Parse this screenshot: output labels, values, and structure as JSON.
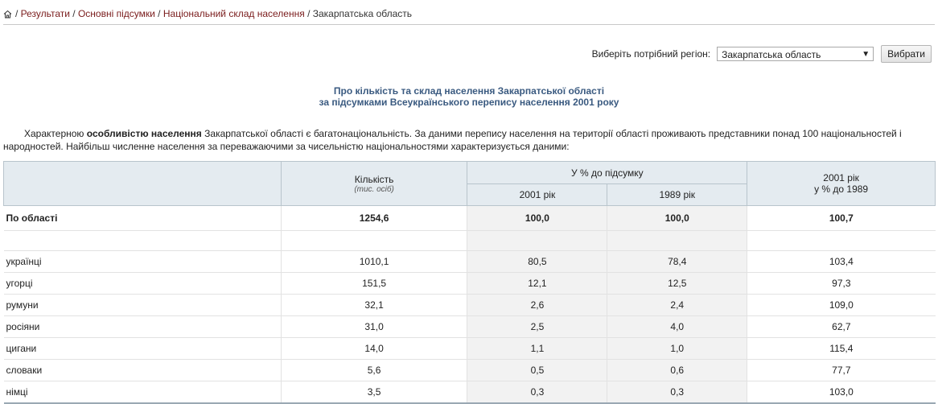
{
  "breadcrumb": {
    "home_icon": "home-icon",
    "items": [
      "Результати",
      "Основні підсумки",
      "Національний склад населення"
    ],
    "current": "Закарпатська область"
  },
  "region": {
    "label": "Виберіть потрібний регіон:",
    "selected": "Закарпатська область",
    "button": "Вибрати"
  },
  "title": {
    "line1": "Про кількість та склад населення Закарпатської області",
    "line2": "за підсумками Всеукраїнського перепису населення 2001 року"
  },
  "intro": {
    "lead": "Характерною ",
    "bold": "особливістю населення",
    "rest": " Закарпатської області є багатонаціональність. За даними перепису населення на території області  проживають представники понад 100 національностей і народностей. Найбільш численне населення за переважаючими  за чисельністю національностями характеризується даними:"
  },
  "table": {
    "headers": {
      "count": "Кількість",
      "count_unit": "(тис. осіб)",
      "percent_group": "У % до підсумку",
      "y2001": "2001 рік",
      "y1989": "1989 рік",
      "change_line1": "2001 рік",
      "change_line2": "у % до 1989"
    },
    "total": {
      "name": "По області",
      "count": "1254,6",
      "p2001": "100,0",
      "p1989": "100,0",
      "change": "100,7"
    },
    "rows": [
      {
        "name": "українці",
        "count": "1010,1",
        "p2001": "80,5",
        "p1989": "78,4",
        "change": "103,4"
      },
      {
        "name": "угорці",
        "count": "151,5",
        "p2001": "12,1",
        "p1989": "12,5",
        "change": "97,3"
      },
      {
        "name": "румуни",
        "count": "32,1",
        "p2001": "2,6",
        "p1989": "2,4",
        "change": "109,0"
      },
      {
        "name": "росіяни",
        "count": "31,0",
        "p2001": "2,5",
        "p1989": "4,0",
        "change": "62,7"
      },
      {
        "name": "цигани",
        "count": "14,0",
        "p2001": "1,1",
        "p1989": "1,0",
        "change": "115,4"
      },
      {
        "name": "словаки",
        "count": "5,6",
        "p2001": "0,5",
        "p1989": "0,6",
        "change": "77,7"
      },
      {
        "name": "німці",
        "count": "3,5",
        "p2001": "0,3",
        "p1989": "0,3",
        "change": "103,0"
      }
    ]
  }
}
